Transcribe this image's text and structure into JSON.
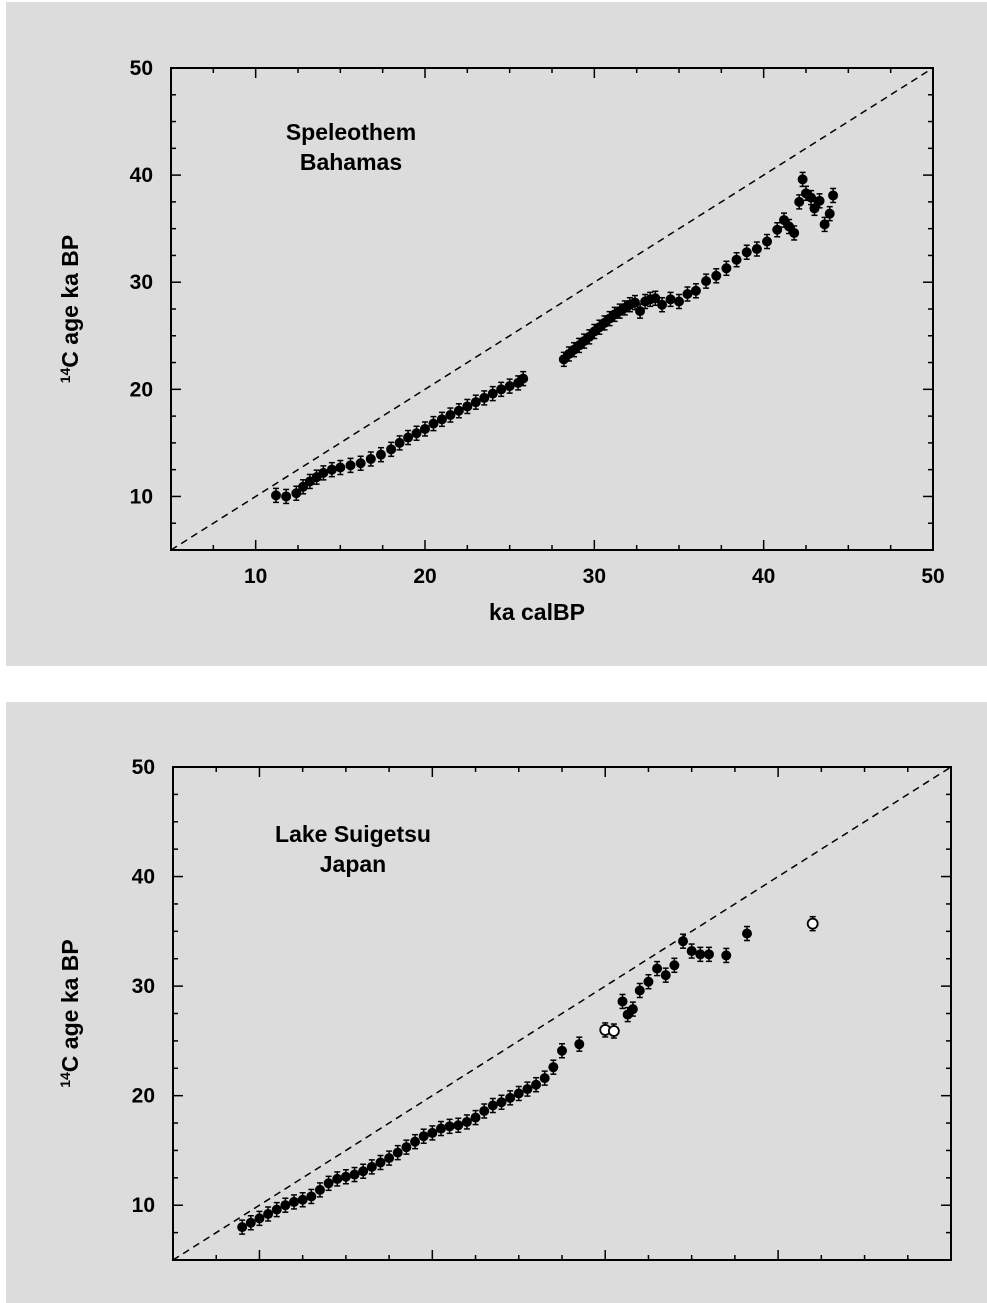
{
  "chart_data": [
    {
      "type": "scatter",
      "title": "",
      "annotation": [
        "Speleothem",
        "Bahamas"
      ],
      "xlabel": "ka calBP",
      "ylabel_sup": "14",
      "ylabel": "C age ka BP",
      "xlim": [
        5,
        50
      ],
      "ylim": [
        5,
        50
      ],
      "xticks": [
        10,
        20,
        30,
        40,
        50
      ],
      "yticks": [
        10,
        20,
        30,
        40,
        50
      ],
      "grid": false,
      "reference_line": {
        "style": "dashed",
        "x": [
          5,
          50
        ],
        "y": [
          5,
          50
        ]
      },
      "series": [
        {
          "marker": "filled",
          "x": [
            11.2,
            11.8,
            12.4,
            12.8,
            13.2,
            13.6,
            14.0,
            14.5,
            15.0,
            15.6,
            16.2,
            16.8,
            17.4,
            18.0,
            18.5,
            19.0,
            19.5,
            20.0,
            20.5,
            21.0,
            21.5,
            22.0,
            22.5,
            23.0,
            23.5,
            24.0,
            24.5,
            25.0,
            25.5,
            25.8,
            28.2,
            28.5,
            28.8,
            29.1,
            29.4,
            29.7,
            30.0,
            30.3,
            30.6,
            30.9,
            31.2,
            31.5,
            31.8,
            32.1,
            32.4,
            32.7,
            33.0,
            33.3,
            33.6,
            34.0,
            34.5,
            35.0,
            35.5,
            36.0,
            36.6,
            37.2,
            37.8,
            38.4,
            39.0,
            39.6,
            40.2,
            40.8,
            41.2,
            41.5,
            41.8,
            42.1,
            42.3,
            42.5,
            42.8,
            43.0,
            43.3,
            43.6,
            43.9,
            44.1
          ],
          "y": [
            10.1,
            10.0,
            10.3,
            10.9,
            11.4,
            11.8,
            12.2,
            12.5,
            12.7,
            12.9,
            13.1,
            13.5,
            13.9,
            14.4,
            15.0,
            15.5,
            15.9,
            16.3,
            16.8,
            17.2,
            17.6,
            18.0,
            18.4,
            18.8,
            19.2,
            19.6,
            20.0,
            20.3,
            20.6,
            21.0,
            22.8,
            23.3,
            23.7,
            24.1,
            24.5,
            24.9,
            25.4,
            25.8,
            26.2,
            26.6,
            27.0,
            27.3,
            27.6,
            27.9,
            28.1,
            27.3,
            28.2,
            28.4,
            28.5,
            27.9,
            28.4,
            28.2,
            28.9,
            29.2,
            30.1,
            30.6,
            31.3,
            32.1,
            32.8,
            33.1,
            33.8,
            34.9,
            35.8,
            35.2,
            34.6,
            37.5,
            39.6,
            38.3,
            37.9,
            36.9,
            37.6,
            35.4,
            36.4,
            38.1
          ]
        }
      ]
    },
    {
      "type": "scatter",
      "title": "",
      "annotation": [
        "Lake Suigetsu",
        "Japan"
      ],
      "xlabel": "",
      "ylabel_sup": "14",
      "ylabel": "C age ka BP",
      "xlim": [
        5,
        50
      ],
      "ylim": [
        5,
        50
      ],
      "xticks": [],
      "yticks": [
        10,
        20,
        30,
        40,
        50
      ],
      "grid": false,
      "reference_line": {
        "style": "dashed",
        "x": [
          5,
          50
        ],
        "y": [
          5,
          50
        ]
      },
      "series": [
        {
          "marker": "filled",
          "x": [
            9.0,
            9.5,
            10.0,
            10.5,
            11.0,
            11.5,
            12.0,
            12.5,
            13.0,
            13.5,
            14.0,
            14.5,
            15.0,
            15.5,
            16.0,
            16.5,
            17.0,
            17.5,
            18.0,
            18.5,
            19.0,
            19.5,
            20.0,
            20.5,
            21.0,
            21.5,
            22.0,
            22.5,
            23.0,
            23.5,
            24.0,
            24.5,
            25.0,
            25.5,
            26.0,
            26.5,
            27.0,
            27.5,
            28.5,
            31.0,
            31.3,
            31.6,
            32.0,
            32.5,
            33.0,
            33.5,
            34.0,
            34.5,
            35.0,
            35.5,
            36.0,
            37.0,
            38.2
          ],
          "y": [
            8.0,
            8.4,
            8.8,
            9.2,
            9.6,
            10.0,
            10.3,
            10.5,
            10.8,
            11.4,
            12.0,
            12.4,
            12.6,
            12.8,
            13.1,
            13.5,
            13.9,
            14.3,
            14.8,
            15.3,
            15.8,
            16.3,
            16.6,
            17.0,
            17.2,
            17.3,
            17.6,
            18.0,
            18.6,
            19.1,
            19.4,
            19.8,
            20.2,
            20.6,
            21.0,
            21.6,
            22.6,
            24.1,
            24.7,
            28.6,
            27.4,
            27.9,
            29.6,
            30.4,
            31.6,
            31.0,
            31.9,
            34.1,
            33.2,
            32.9,
            32.9,
            32.8,
            34.8
          ]
        },
        {
          "marker": "open",
          "x": [
            30.0,
            30.5,
            42.0
          ],
          "y": [
            26.0,
            25.9,
            35.7
          ]
        }
      ]
    }
  ]
}
